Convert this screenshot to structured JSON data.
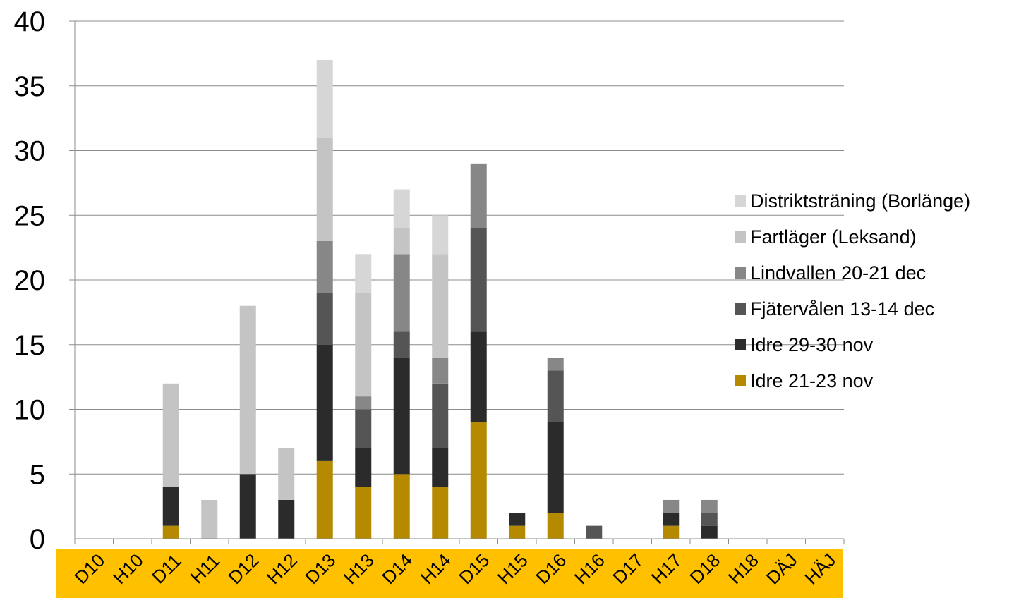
{
  "chart_data": {
    "type": "bar",
    "stacked": true,
    "categories": [
      "D10",
      "H10",
      "D11",
      "H11",
      "D12",
      "H12",
      "D13",
      "H13",
      "D14",
      "H14",
      "D15",
      "H15",
      "D16",
      "H16",
      "D17",
      "H17",
      "D18",
      "H18",
      "DÄJ",
      "HÄJ"
    ],
    "series": [
      {
        "name": "Idre 21-23 nov",
        "color": "#b58a00",
        "values": [
          0,
          0,
          1,
          0,
          0,
          0,
          6,
          4,
          5,
          4,
          9,
          1,
          2,
          0,
          0,
          1,
          0,
          0,
          0,
          0
        ]
      },
      {
        "name": "Idre 29-30 nov",
        "color": "#2b2b2b",
        "values": [
          0,
          0,
          3,
          0,
          5,
          3,
          9,
          3,
          9,
          3,
          7,
          1,
          7,
          0,
          0,
          1,
          1,
          0,
          0,
          0
        ]
      },
      {
        "name": "Fjätervålen 13-14 dec",
        "color": "#555555",
        "values": [
          0,
          0,
          0,
          0,
          0,
          0,
          4,
          3,
          2,
          5,
          8,
          0,
          4,
          1,
          0,
          0,
          1,
          0,
          0,
          0
        ]
      },
      {
        "name": "Lindvallen 20-21 dec",
        "color": "#878787",
        "values": [
          0,
          0,
          0,
          0,
          0,
          0,
          4,
          1,
          6,
          2,
          5,
          0,
          1,
          0,
          0,
          1,
          1,
          0,
          0,
          0
        ]
      },
      {
        "name": "Fartläger (Leksand)",
        "color": "#c4c4c4",
        "values": [
          0,
          0,
          8,
          3,
          13,
          4,
          8,
          8,
          2,
          8,
          0,
          0,
          0,
          0,
          0,
          0,
          0,
          0,
          0,
          0
        ]
      },
      {
        "name": "Distriktsträning (Borlänge)",
        "color": "#d6d6d6",
        "values": [
          0,
          0,
          0,
          0,
          0,
          0,
          6,
          3,
          3,
          3,
          0,
          0,
          0,
          0,
          0,
          0,
          0,
          0,
          0,
          0
        ]
      }
    ],
    "legend_order": [
      "Distriktsträning (Borlänge)",
      "Fartläger (Leksand)",
      "Lindvallen 20-21 dec",
      "Fjätervålen 13-14 dec",
      "Idre 29-30 nov",
      "Idre 21-23 nov"
    ],
    "ylim": [
      0,
      40
    ],
    "yticks": [
      "0",
      "5",
      "10",
      "15",
      "20",
      "25",
      "30",
      "35",
      "40"
    ],
    "grid": true,
    "legend_position": "right",
    "category_band_color": "#ffc000",
    "title": "",
    "xlabel": "",
    "ylabel": ""
  }
}
